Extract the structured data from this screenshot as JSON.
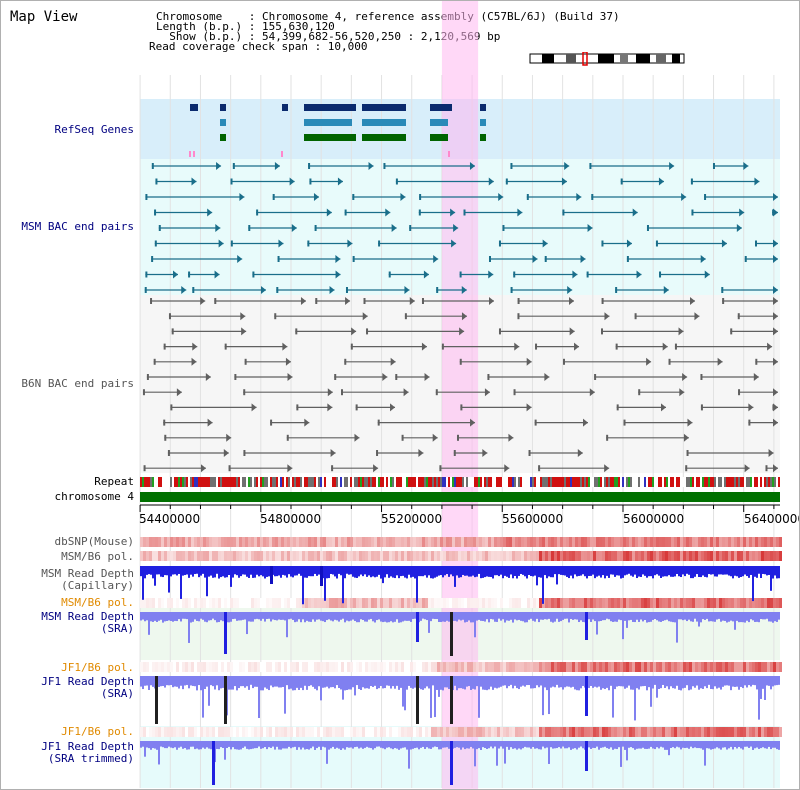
{
  "title": "Map View",
  "info": {
    "chromosome": "Chromosome    : Chromosome 4, reference assembly (C57BL/6J) (Build 37)",
    "length": "Length (b.p.) : 155,630,120",
    "show": "  Show (b.p.) : 54,399,682-56,520,250 : 2,120,569 bp",
    "coverage": "Read coverage check span : 10,000"
  },
  "colors": {
    "label_blue": "#000080",
    "label_gray": "#555555",
    "label_orange": "#e08a00",
    "refseq_bg": "#d8eefa",
    "msm_bac_bg": "#e8fbfb",
    "highlight": "#ffb8f0",
    "gene_dark": "#0a2a6e",
    "gene_mid": "#2a8ab8",
    "gene_green": "#006400",
    "chrom_green": "#007000",
    "depth_blue": "#2020e0",
    "sra_blue": "#8080f0"
  },
  "tracks": {
    "refseq": "RefSeq Genes",
    "msm_bac": "MSM BAC end pairs",
    "b6n_bac": "B6N BAC end pairs",
    "repeat": "Repeat",
    "chromosome": "chromosome 4",
    "dbsnp": "dbSNP(Mouse)",
    "msm_b6_pol_1": "MSM/B6 pol.",
    "msm_depth_cap_1": "MSM Read Depth",
    "msm_depth_cap_2": "(Capillary)",
    "msm_b6_pol_2": "MSM/B6 pol.",
    "msm_depth_sra_1": "MSM Read Depth",
    "msm_depth_sra_2": "(SRA)",
    "jf1_b6_pol_1": "JF1/B6 pol.",
    "jf1_depth_sra_1": "JF1 Read Depth",
    "jf1_depth_sra_2": "(SRA)",
    "jf1_b6_pol_2": "JF1/B6 pol.",
    "jf1_depth_trim_1": "JF1 Read Depth",
    "jf1_depth_trim_2": "(SRA trimmed)"
  },
  "axis": {
    "range": [
      54399682,
      56520250
    ],
    "ticks": [
      "54400000",
      "54800000",
      "55200000",
      "55600000",
      "56000000",
      "56400000"
    ],
    "tick_values": [
      54400000,
      54800000,
      55200000,
      55600000,
      56000000,
      56400000
    ]
  },
  "highlight_range": [
    55400000,
    55520000
  ]
}
